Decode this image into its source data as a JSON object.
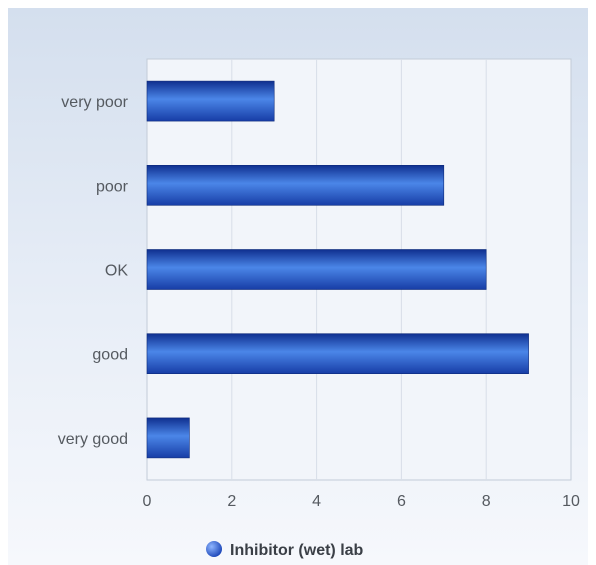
{
  "chart_data": {
    "type": "bar",
    "orientation": "horizontal",
    "categories": [
      "very poor",
      "poor",
      "OK",
      "good",
      "very good"
    ],
    "series": [
      {
        "name": "Inhibitor (wet) lab",
        "values": [
          3,
          7,
          8,
          9,
          1
        ]
      }
    ],
    "xlim": [
      0,
      10
    ],
    "x_ticks": [
      0,
      2,
      4,
      6,
      8,
      10
    ],
    "grid": true,
    "legend_position": "bottom",
    "colors": {
      "bar_dark": "#0f2f8f",
      "bar_light": "#4b86e8",
      "bar_mid": "#2659c9"
    }
  }
}
